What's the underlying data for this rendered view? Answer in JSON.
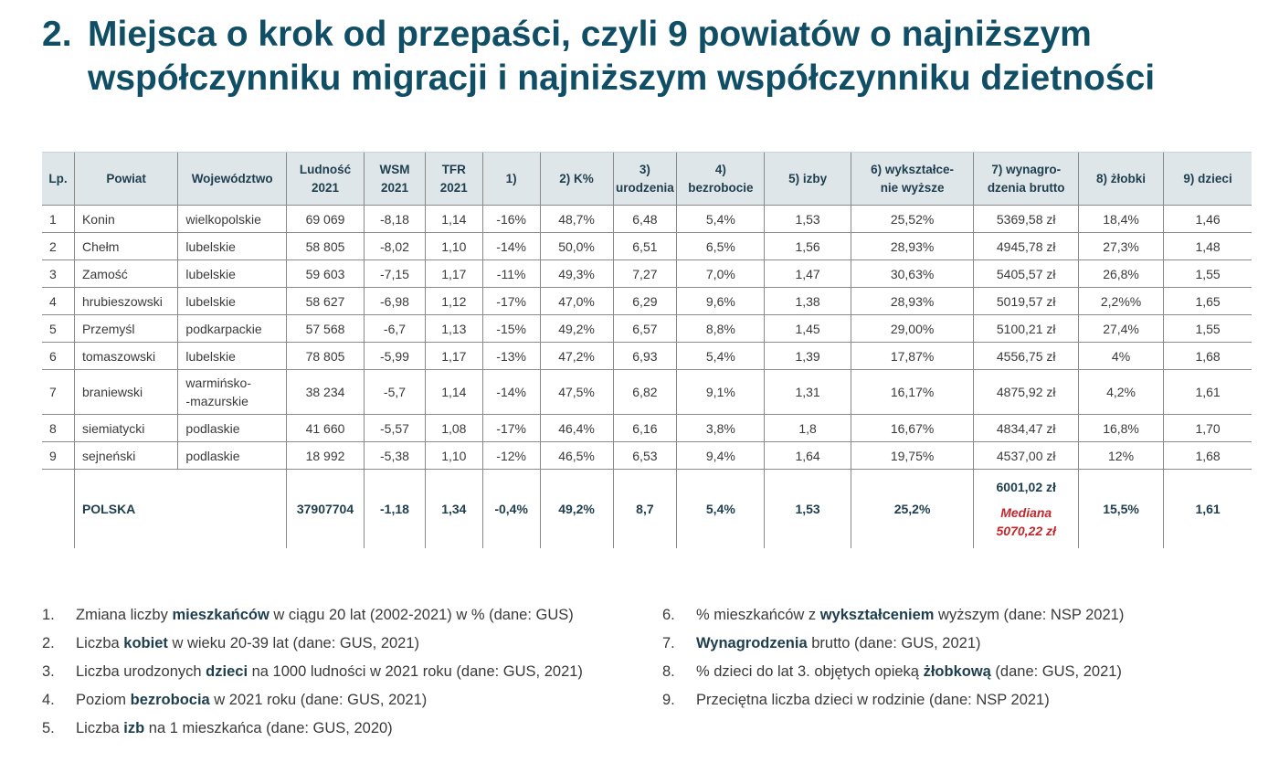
{
  "title": {
    "number": "2.",
    "line1": "Miejsca o krok od przepaści, czyli 9 powiatów o najniższym",
    "line2": "współczynniku migracji i najniższym współczynniku dzietności"
  },
  "table": {
    "headers": {
      "lp": "Lp.",
      "powiat": "Powiat",
      "woj": "Województwo",
      "ludnosc": [
        "Ludność",
        "2021"
      ],
      "wsm": [
        "WSM",
        "2021"
      ],
      "tfr": [
        "TFR",
        "2021"
      ],
      "c1": "1)",
      "c2": "2) K%",
      "c3": [
        "3)",
        "urodzenia"
      ],
      "c4": [
        "4)",
        "bezrobocie"
      ],
      "c5": "5) izby",
      "c6": [
        "6) wykształce-",
        "nie wyższe"
      ],
      "c7": [
        "7) wynagro-",
        "dzenia brutto"
      ],
      "c8": "8) żłobki",
      "c9": "9) dzieci"
    },
    "rows": [
      {
        "lp": "1",
        "powiat": "Konin",
        "woj": [
          "wielkopolskie"
        ],
        "ludnosc": "69 069",
        "wsm": "-8,18",
        "tfr": "1,14",
        "c1": "-16%",
        "c2": "48,7%",
        "c3": "6,48",
        "c4": "5,4%",
        "c5": "1,53",
        "c6": "25,52%",
        "c7": "5369,58 zł",
        "c8": "18,4%",
        "c9": "1,46"
      },
      {
        "lp": "2",
        "powiat": "Chełm",
        "woj": [
          "lubelskie"
        ],
        "ludnosc": "58 805",
        "wsm": "-8,02",
        "tfr": "1,10",
        "c1": "-14%",
        "c2": "50,0%",
        "c3": "6,51",
        "c4": "6,5%",
        "c5": "1,56",
        "c6": "28,93%",
        "c7": "4945,78 zł",
        "c8": "27,3%",
        "c9": "1,48"
      },
      {
        "lp": "3",
        "powiat": "Zamość",
        "woj": [
          "lubelskie"
        ],
        "ludnosc": "59 603",
        "wsm": "-7,15",
        "tfr": "1,17",
        "c1": "-11%",
        "c2": "49,3%",
        "c3": "7,27",
        "c4": "7,0%",
        "c5": "1,47",
        "c6": "30,63%",
        "c7": "5405,57 zł",
        "c8": "26,8%",
        "c9": "1,55"
      },
      {
        "lp": "4",
        "powiat": "hrubieszowski",
        "woj": [
          "lubelskie"
        ],
        "ludnosc": "58 627",
        "wsm": "-6,98",
        "tfr": "1,12",
        "c1": "-17%",
        "c2": "47,0%",
        "c3": "6,29",
        "c4": "9,6%",
        "c5": "1,38",
        "c6": "28,93%",
        "c7": "5019,57 zł",
        "c8": "2,2%%",
        "c9": "1,65"
      },
      {
        "lp": "5",
        "powiat": "Przemyśl",
        "woj": [
          "podkarpackie"
        ],
        "ludnosc": "57 568",
        "wsm": "-6,7",
        "tfr": "1,13",
        "c1": "-15%",
        "c2": "49,2%",
        "c3": "6,57",
        "c4": "8,8%",
        "c5": "1,45",
        "c6": "29,00%",
        "c7": "5100,21 zł",
        "c8": "27,4%",
        "c9": "1,55"
      },
      {
        "lp": "6",
        "powiat": "tomaszowski",
        "woj": [
          "lubelskie"
        ],
        "ludnosc": "78 805",
        "wsm": "-5,99",
        "tfr": "1,17",
        "c1": "-13%",
        "c2": "47,2%",
        "c3": "6,93",
        "c4": "5,4%",
        "c5": "1,39",
        "c6": "17,87%",
        "c7": "4556,75 zł",
        "c8": "4%",
        "c9": "1,68"
      },
      {
        "lp": "7",
        "powiat": "braniewski",
        "woj": [
          "warmińsko-",
          "-mazurskie"
        ],
        "ludnosc": "38 234",
        "wsm": "-5,7",
        "tfr": "1,14",
        "c1": "-14%",
        "c2": "47,5%",
        "c3": "6,82",
        "c4": "9,1%",
        "c5": "1,31",
        "c6": "16,17%",
        "c7": "4875,92 zł",
        "c8": "4,2%",
        "c9": "1,61"
      },
      {
        "lp": "8",
        "powiat": "siemiatycki",
        "woj": [
          "podlaskie"
        ],
        "ludnosc": "41 660",
        "wsm": "-5,57",
        "tfr": "1,08",
        "c1": "-17%",
        "c2": "46,4%",
        "c3": "6,16",
        "c4": "3,8%",
        "c5": "1,8",
        "c6": "16,67%",
        "c7": "4834,47 zł",
        "c8": "16,8%",
        "c9": "1,70"
      },
      {
        "lp": "9",
        "powiat": "sejneński",
        "woj": [
          "podlaskie"
        ],
        "ludnosc": "18 992",
        "wsm": "-5,38",
        "tfr": "1,10",
        "c1": "-12%",
        "c2": "46,5%",
        "c3": "6,53",
        "c4": "9,4%",
        "c5": "1,64",
        "c6": "19,75%",
        "c7": "4537,00 zł",
        "c8": "12%",
        "c9": "1,68"
      }
    ],
    "total": {
      "label": "POLSKA",
      "ludnosc": "37907704",
      "wsm": "-1,18",
      "tfr": "1,34",
      "c1": "-0,4%",
      "c2": "49,2%",
      "c3": "8,7",
      "c4": "5,4%",
      "c5": "1,53",
      "c6": "25,2%",
      "c7": "6001,02 zł",
      "median": [
        "Mediana",
        "5070,22 zł"
      ],
      "c8": "15,5%",
      "c9": "1,61"
    }
  },
  "footnotes_left": [
    {
      "n": "1.",
      "parts": [
        {
          "t": "Zmiana liczby "
        },
        {
          "t": "mieszkańców",
          "b": true
        },
        {
          "t": " w ciągu 20 lat (2002-2021) w % (dane: GUS)"
        }
      ]
    },
    {
      "n": "2.",
      "parts": [
        {
          "t": "Liczba "
        },
        {
          "t": "kobiet",
          "b": true
        },
        {
          "t": " w wieku 20-39 lat (dane: GUS, 2021)"
        }
      ]
    },
    {
      "n": "3.",
      "parts": [
        {
          "t": "Liczba urodzonych "
        },
        {
          "t": "dzieci",
          "b": true
        },
        {
          "t": " na 1000 ludności w 2021 roku (dane: GUS, 2021)"
        }
      ]
    },
    {
      "n": "4.",
      "parts": [
        {
          "t": "Poziom "
        },
        {
          "t": "bezrobocia",
          "b": true
        },
        {
          "t": " w 2021 roku (dane: GUS, 2021)"
        }
      ]
    },
    {
      "n": "5.",
      "parts": [
        {
          "t": "Liczba "
        },
        {
          "t": "izb",
          "b": true
        },
        {
          "t": " na 1 mieszkańca (dane: GUS, 2020)"
        }
      ]
    }
  ],
  "footnotes_right": [
    {
      "n": "6.",
      "parts": [
        {
          "t": "% mieszkańców z "
        },
        {
          "t": "wykształceniem",
          "b": true
        },
        {
          "t": " wyższym (dane: NSP 2021)"
        }
      ]
    },
    {
      "n": "7.",
      "parts": [
        {
          "t": "Wynagrodzenia",
          "b": true
        },
        {
          "t": " brutto (dane: GUS, 2021)"
        }
      ]
    },
    {
      "n": "8.",
      "parts": [
        {
          "t": "% dzieci do lat 3. objętych opieką "
        },
        {
          "t": "żłobkową",
          "b": true
        },
        {
          "t": " (dane: GUS, 2021)"
        }
      ]
    },
    {
      "n": "9.",
      "parts": [
        {
          "t": "Przeciętna liczba dzieci w rodzinie (dane: NSP 2021)"
        }
      ]
    }
  ]
}
